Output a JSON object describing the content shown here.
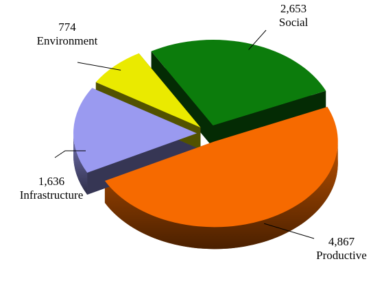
{
  "chart_data": {
    "type": "pie",
    "categories": [
      "Social",
      "Productive",
      "Infrastructure",
      "Environment"
    ],
    "values": [
      2653,
      4867,
      1636,
      774
    ],
    "value_labels": [
      "2,653",
      "4,867",
      "1,636",
      "774"
    ],
    "colors": [
      "#0c7c0c",
      "#f66a00",
      "#9a9af0",
      "#eaea00"
    ]
  }
}
